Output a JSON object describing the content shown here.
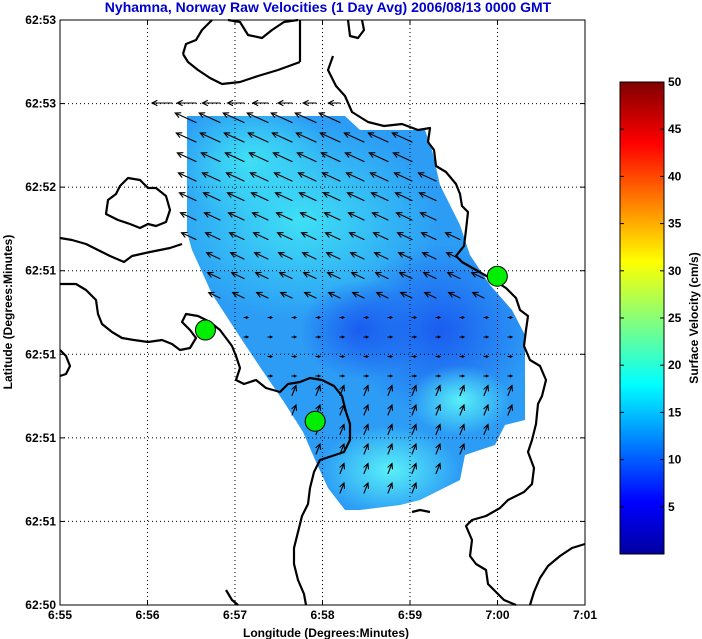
{
  "chart_data": {
    "type": "heatmap",
    "title": "Nyhamna, Norway Raw Velocities (1 Day Avg) 2006/08/13 0000 GMT",
    "xlabel": "Longitude (Degrees:Minutes)",
    "ylabel": "Latitude (Degrees:Minutes)",
    "x_ticks": [
      "6:55",
      "6:56",
      "6:57",
      "6:58",
      "6:59",
      "7:00",
      "7:01"
    ],
    "y_ticks": [
      "62:50",
      "62:51",
      "62:51",
      "62:51",
      "62:51",
      "62:52",
      "62:53",
      "62:53"
    ],
    "xlim": [
      6.9167,
      7.0167
    ],
    "ylim": [
      62.8333,
      62.8833
    ],
    "grid": true,
    "colorbar": {
      "label": "Surface Velocity (cm/s)",
      "ticks": [
        "5",
        "10",
        "15",
        "20",
        "25",
        "30",
        "35",
        "40",
        "45",
        "50"
      ],
      "range": [
        0,
        50
      ],
      "colormap": "jet"
    },
    "stations": [
      {
        "lon": 6.9444,
        "lat": 62.8568
      },
      {
        "lon": 6.9653,
        "lat": 62.849
      },
      {
        "lon": 7.0,
        "lat": 62.8614
      }
    ],
    "station_color": "#00ee00",
    "coast_color": "#000000"
  }
}
